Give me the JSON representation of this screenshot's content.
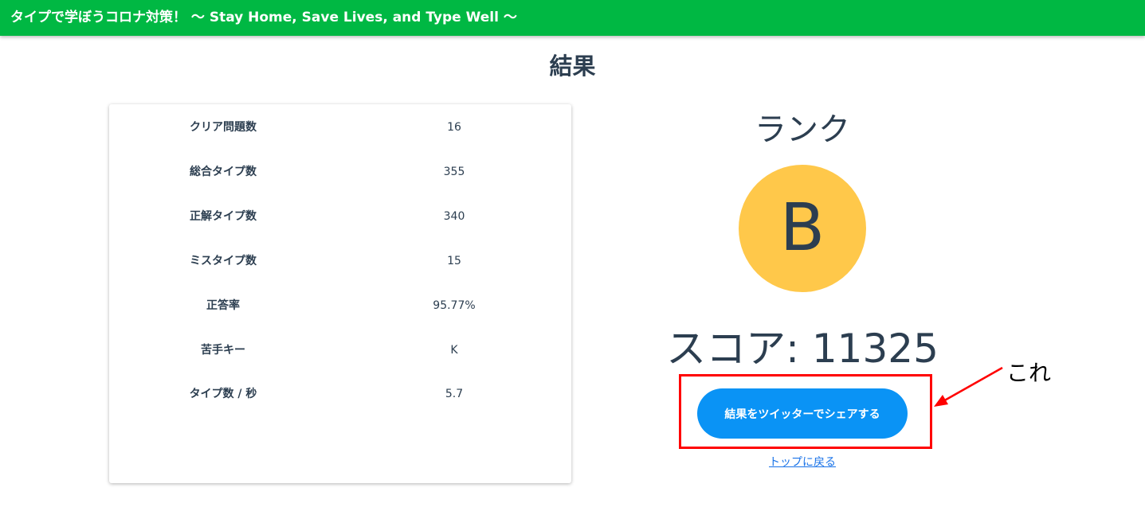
{
  "header": {
    "title": "タイプで学ぼうコロナ対策！ 〜 Stay Home, Save Lives, and Type Well 〜"
  },
  "page_title": "結果",
  "stats": [
    {
      "label": "クリア問題数",
      "value": "16"
    },
    {
      "label": "総合タイプ数",
      "value": "355"
    },
    {
      "label": "正解タイプ数",
      "value": "340"
    },
    {
      "label": "ミスタイプ数",
      "value": "15"
    },
    {
      "label": "正答率",
      "value": "95.77%"
    },
    {
      "label": "苦手キー",
      "value": "K"
    },
    {
      "label": "タイプ数 / 秒",
      "value": "5.7"
    }
  ],
  "rank": {
    "label": "ランク",
    "value": "B",
    "color": "#ffc84a"
  },
  "score": "スコア: 11325",
  "share_button": "結果をツイッターでシェアする",
  "back_link": "トップに戻る",
  "annotation": {
    "text": "これ",
    "color": "#ff0000"
  },
  "colors": {
    "header": "#00b843",
    "button": "#0a93f5"
  }
}
